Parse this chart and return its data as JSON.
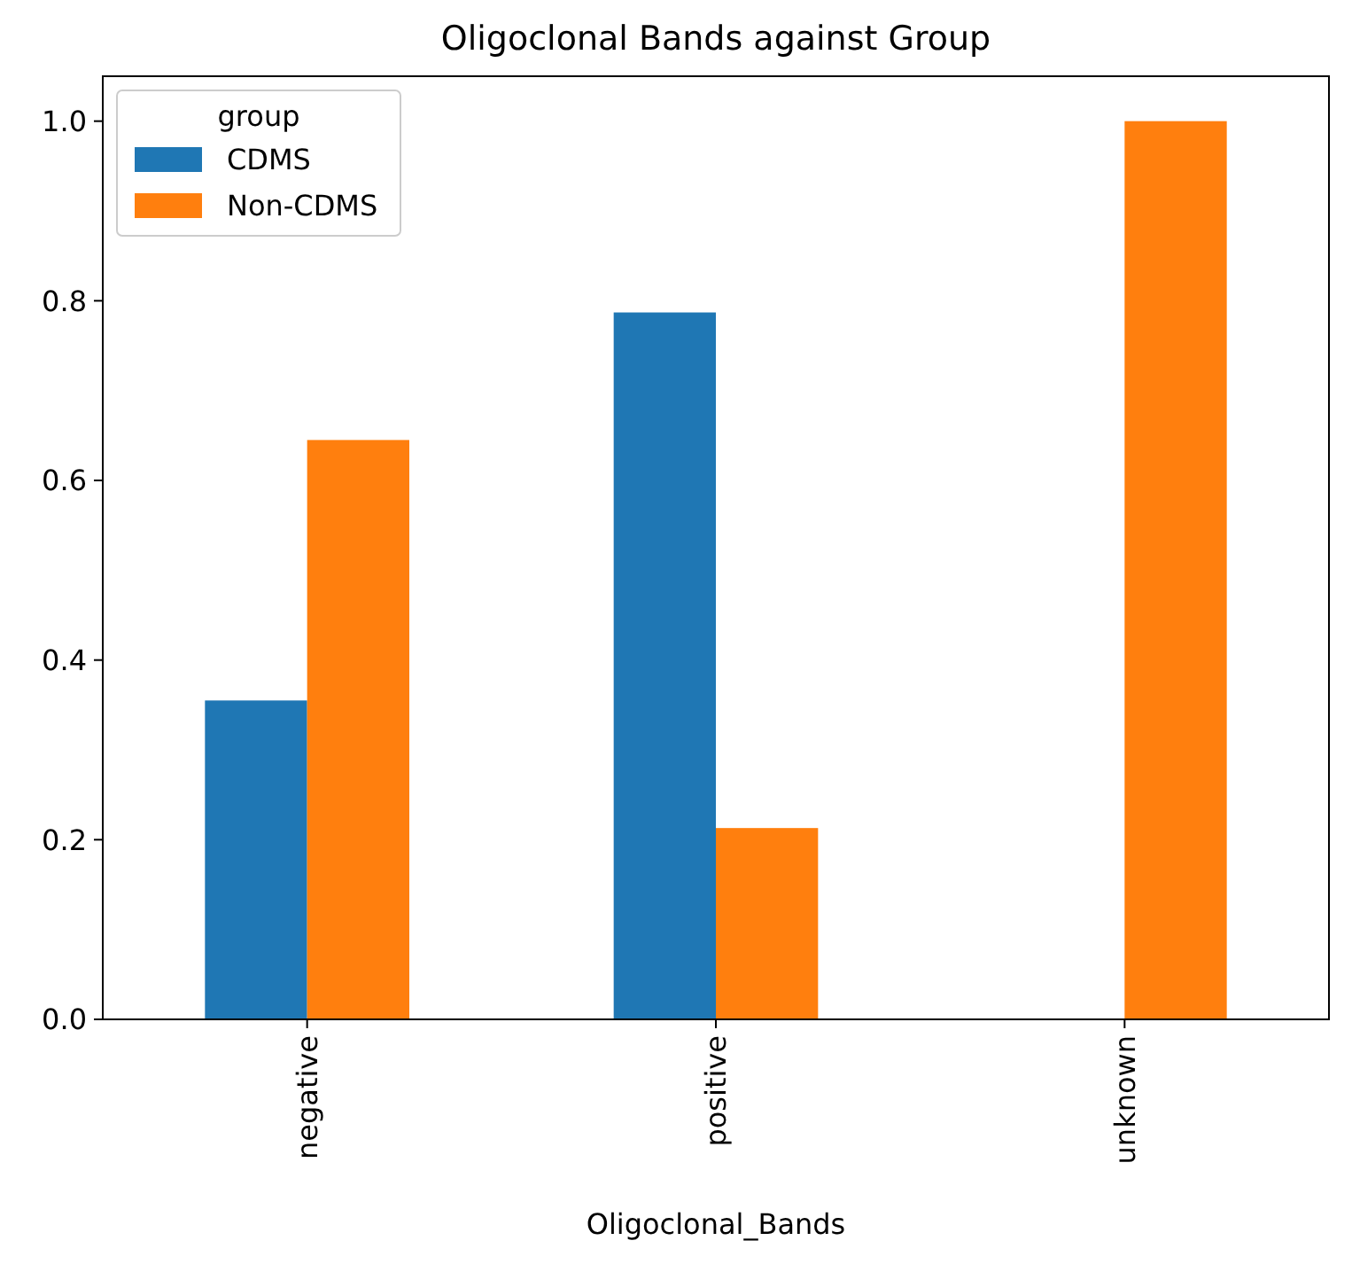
{
  "chart_data": {
    "type": "bar",
    "title": "Oligoclonal Bands against Group",
    "xlabel": "Oligoclonal_Bands",
    "legend_title": "group",
    "categories": [
      "negative",
      "positive",
      "unknown"
    ],
    "series": [
      {
        "name": "CDMS",
        "color": "#1f77b4",
        "values": [
          0.355,
          0.787,
          0
        ]
      },
      {
        "name": "Non-CDMS",
        "color": "#ff7f0e",
        "values": [
          0.645,
          0.213,
          1.0
        ]
      }
    ],
    "ylim": [
      0,
      1.05
    ],
    "yticks": [
      {
        "value": 0,
        "label": "0.0"
      },
      {
        "value": 0.2,
        "label": "0.2"
      },
      {
        "value": 0.4,
        "label": "0.4"
      },
      {
        "value": 0.6,
        "label": "0.6"
      },
      {
        "value": 0.8,
        "label": "0.8"
      },
      {
        "value": 1.0,
        "label": "1.0"
      }
    ],
    "grid": false,
    "legend": "top left"
  }
}
